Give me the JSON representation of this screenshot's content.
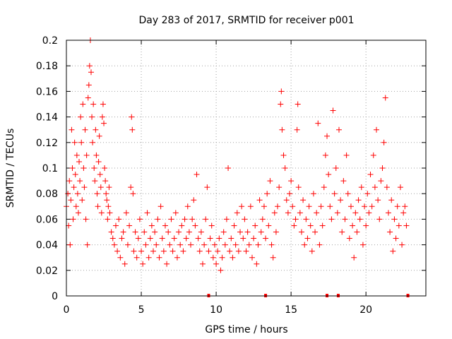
{
  "chart_data": {
    "type": "scatter",
    "title": "Day 283 of 2017, SRMTID for receiver p001",
    "xlabel": "GPS time / hours",
    "ylabel": "SRMTID / TECUs",
    "xlim": [
      0,
      24
    ],
    "ylim": [
      0,
      0.2
    ],
    "x_ticks": [
      0,
      5,
      10,
      15,
      20
    ],
    "x_tick_labels": [
      "0",
      "5",
      "10",
      "15",
      "20"
    ],
    "y_ticks": [
      0,
      0.02,
      0.04,
      0.06,
      0.08,
      0.1,
      0.12,
      0.14,
      0.16,
      0.18,
      0.2
    ],
    "y_tick_labels": [
      "0",
      "0.02",
      "0.04",
      "0.06",
      "0.08",
      "0.1",
      "0.12",
      "0.14",
      "0.16",
      "0.18",
      "0.2"
    ],
    "grid": true,
    "grid_style": "dotted",
    "marker": "+",
    "series": [
      {
        "name": "SRMTID",
        "color": "#ff0000",
        "points": [
          [
            0.0,
            0.07
          ],
          [
            0.1,
            0.08
          ],
          [
            0.15,
            0.055
          ],
          [
            0.2,
            0.09
          ],
          [
            0.25,
            0.04
          ],
          [
            0.3,
            0.075
          ],
          [
            0.35,
            0.13
          ],
          [
            0.4,
            0.1
          ],
          [
            0.45,
            0.06
          ],
          [
            0.5,
            0.085
          ],
          [
            0.55,
            0.12
          ],
          [
            0.6,
            0.095
          ],
          [
            0.65,
            0.07
          ],
          [
            0.7,
            0.11
          ],
          [
            0.75,
            0.08
          ],
          [
            0.8,
            0.065
          ],
          [
            0.85,
            0.105
          ],
          [
            0.9,
            0.09
          ],
          [
            0.95,
            0.14
          ],
          [
            1.0,
            0.12
          ],
          [
            1.05,
            0.075
          ],
          [
            1.1,
            0.15
          ],
          [
            1.15,
            0.1
          ],
          [
            1.2,
            0.085
          ],
          [
            1.25,
            0.13
          ],
          [
            1.3,
            0.06
          ],
          [
            1.35,
            0.11
          ],
          [
            1.4,
            0.04
          ],
          [
            1.45,
            0.155
          ],
          [
            1.5,
            0.165
          ],
          [
            1.55,
            0.18
          ],
          [
            1.6,
            0.2
          ],
          [
            1.65,
            0.175
          ],
          [
            1.7,
            0.14
          ],
          [
            1.75,
            0.12
          ],
          [
            1.8,
            0.15
          ],
          [
            1.85,
            0.1
          ],
          [
            1.9,
            0.09
          ],
          [
            1.95,
            0.13
          ],
          [
            2.0,
            0.11
          ],
          [
            2.05,
            0.08
          ],
          [
            2.1,
            0.07
          ],
          [
            2.15,
            0.105
          ],
          [
            2.2,
            0.125
          ],
          [
            2.25,
            0.095
          ],
          [
            2.3,
            0.085
          ],
          [
            2.35,
            0.065
          ],
          [
            2.4,
            0.14
          ],
          [
            2.45,
            0.15
          ],
          [
            2.5,
            0.135
          ],
          [
            2.55,
            0.1
          ],
          [
            2.6,
            0.09
          ],
          [
            2.65,
            0.08
          ],
          [
            2.7,
            0.075
          ],
          [
            2.75,
            0.06
          ],
          [
            2.8,
            0.07
          ],
          [
            2.85,
            0.085
          ],
          [
            2.9,
            0.065
          ],
          [
            3.0,
            0.05
          ],
          [
            3.1,
            0.045
          ],
          [
            3.2,
            0.04
          ],
          [
            3.3,
            0.055
          ],
          [
            3.4,
            0.035
          ],
          [
            3.5,
            0.06
          ],
          [
            3.6,
            0.03
          ],
          [
            3.7,
            0.045
          ],
          [
            3.8,
            0.05
          ],
          [
            3.9,
            0.025
          ],
          [
            4.0,
            0.065
          ],
          [
            4.1,
            0.04
          ],
          [
            4.2,
            0.055
          ],
          [
            4.3,
            0.085
          ],
          [
            4.35,
            0.14
          ],
          [
            4.4,
            0.13
          ],
          [
            4.45,
            0.08
          ],
          [
            4.5,
            0.035
          ],
          [
            4.6,
            0.05
          ],
          [
            4.7,
            0.03
          ],
          [
            4.8,
            0.045
          ],
          [
            4.9,
            0.06
          ],
          [
            5.0,
            0.035
          ],
          [
            5.1,
            0.025
          ],
          [
            5.2,
            0.05
          ],
          [
            5.3,
            0.04
          ],
          [
            5.4,
            0.065
          ],
          [
            5.5,
            0.03
          ],
          [
            5.6,
            0.045
          ],
          [
            5.7,
            0.055
          ],
          [
            5.8,
            0.035
          ],
          [
            5.9,
            0.05
          ],
          [
            6.0,
            0.04
          ],
          [
            6.1,
            0.06
          ],
          [
            6.2,
            0.03
          ],
          [
            6.3,
            0.07
          ],
          [
            6.4,
            0.045
          ],
          [
            6.5,
            0.035
          ],
          [
            6.6,
            0.055
          ],
          [
            6.7,
            0.025
          ],
          [
            6.8,
            0.05
          ],
          [
            6.9,
            0.04
          ],
          [
            7.0,
            0.06
          ],
          [
            7.1,
            0.035
          ],
          [
            7.2,
            0.045
          ],
          [
            7.3,
            0.065
          ],
          [
            7.4,
            0.03
          ],
          [
            7.5,
            0.05
          ],
          [
            7.6,
            0.04
          ],
          [
            7.7,
            0.055
          ],
          [
            7.8,
            0.035
          ],
          [
            7.9,
            0.06
          ],
          [
            8.0,
            0.045
          ],
          [
            8.1,
            0.07
          ],
          [
            8.2,
            0.05
          ],
          [
            8.3,
            0.04
          ],
          [
            8.4,
            0.06
          ],
          [
            8.5,
            0.075
          ],
          [
            8.6,
            0.055
          ],
          [
            8.7,
            0.095
          ],
          [
            8.8,
            0.045
          ],
          [
            8.9,
            0.035
          ],
          [
            9.0,
            0.05
          ],
          [
            9.1,
            0.025
          ],
          [
            9.2,
            0.04
          ],
          [
            9.3,
            0.06
          ],
          [
            9.4,
            0.085
          ],
          [
            9.5,
            0.035
          ],
          [
            9.6,
            0.045
          ],
          [
            9.7,
            0.055
          ],
          [
            9.8,
            0.03
          ],
          [
            9.9,
            0.04
          ],
          [
            10.0,
            0.025
          ],
          [
            10.1,
            0.035
          ],
          [
            10.2,
            0.045
          ],
          [
            10.3,
            0.02
          ],
          [
            10.4,
            0.03
          ],
          [
            10.5,
            0.05
          ],
          [
            10.6,
            0.04
          ],
          [
            10.7,
            0.06
          ],
          [
            10.8,
            0.1
          ],
          [
            10.9,
            0.035
          ],
          [
            11.0,
            0.045
          ],
          [
            11.1,
            0.03
          ],
          [
            11.2,
            0.055
          ],
          [
            11.3,
            0.04
          ],
          [
            11.4,
            0.065
          ],
          [
            11.5,
            0.035
          ],
          [
            11.6,
            0.05
          ],
          [
            11.7,
            0.07
          ],
          [
            11.8,
            0.045
          ],
          [
            11.9,
            0.06
          ],
          [
            12.0,
            0.035
          ],
          [
            12.1,
            0.05
          ],
          [
            12.2,
            0.04
          ],
          [
            12.3,
            0.07
          ],
          [
            12.4,
            0.03
          ],
          [
            12.5,
            0.045
          ],
          [
            12.6,
            0.055
          ],
          [
            12.7,
            0.025
          ],
          [
            12.8,
            0.04
          ],
          [
            12.9,
            0.075
          ],
          [
            13.0,
            0.05
          ],
          [
            13.1,
            0.06
          ],
          [
            13.2,
            0.07
          ],
          [
            13.3,
            0.045
          ],
          [
            13.4,
            0.08
          ],
          [
            13.5,
            0.055
          ],
          [
            13.6,
            0.09
          ],
          [
            13.7,
            0.04
          ],
          [
            13.8,
            0.03
          ],
          [
            13.9,
            0.065
          ],
          [
            14.0,
            0.05
          ],
          [
            14.1,
            0.07
          ],
          [
            14.2,
            0.085
          ],
          [
            14.3,
            0.15
          ],
          [
            14.35,
            0.16
          ],
          [
            14.4,
            0.13
          ],
          [
            14.5,
            0.11
          ],
          [
            14.6,
            0.1
          ],
          [
            14.7,
            0.075
          ],
          [
            14.8,
            0.065
          ],
          [
            14.9,
            0.08
          ],
          [
            15.0,
            0.09
          ],
          [
            15.1,
            0.07
          ],
          [
            15.2,
            0.055
          ],
          [
            15.3,
            0.06
          ],
          [
            15.4,
            0.13
          ],
          [
            15.45,
            0.15
          ],
          [
            15.5,
            0.085
          ],
          [
            15.6,
            0.065
          ],
          [
            15.7,
            0.05
          ],
          [
            15.8,
            0.075
          ],
          [
            15.9,
            0.04
          ],
          [
            16.0,
            0.06
          ],
          [
            16.1,
            0.045
          ],
          [
            16.2,
            0.07
          ],
          [
            16.3,
            0.055
          ],
          [
            16.4,
            0.035
          ],
          [
            16.5,
            0.08
          ],
          [
            16.6,
            0.05
          ],
          [
            16.7,
            0.065
          ],
          [
            16.8,
            0.135
          ],
          [
            16.9,
            0.04
          ],
          [
            17.0,
            0.07
          ],
          [
            17.1,
            0.055
          ],
          [
            17.2,
            0.085
          ],
          [
            17.3,
            0.11
          ],
          [
            17.4,
            0.125
          ],
          [
            17.5,
            0.095
          ],
          [
            17.6,
            0.07
          ],
          [
            17.7,
            0.06
          ],
          [
            17.8,
            0.145
          ],
          [
            17.9,
            0.08
          ],
          [
            18.0,
            0.1
          ],
          [
            18.1,
            0.065
          ],
          [
            18.2,
            0.13
          ],
          [
            18.3,
            0.075
          ],
          [
            18.4,
            0.05
          ],
          [
            18.5,
            0.09
          ],
          [
            18.6,
            0.06
          ],
          [
            18.7,
            0.11
          ],
          [
            18.8,
            0.08
          ],
          [
            18.9,
            0.045
          ],
          [
            19.0,
            0.07
          ],
          [
            19.1,
            0.055
          ],
          [
            19.2,
            0.03
          ],
          [
            19.3,
            0.065
          ],
          [
            19.4,
            0.05
          ],
          [
            19.5,
            0.075
          ],
          [
            19.6,
            0.06
          ],
          [
            19.7,
            0.085
          ],
          [
            19.8,
            0.04
          ],
          [
            19.9,
            0.07
          ],
          [
            20.0,
            0.055
          ],
          [
            20.1,
            0.08
          ],
          [
            20.2,
            0.065
          ],
          [
            20.3,
            0.095
          ],
          [
            20.4,
            0.07
          ],
          [
            20.5,
            0.11
          ],
          [
            20.6,
            0.085
          ],
          [
            20.7,
            0.13
          ],
          [
            20.8,
            0.075
          ],
          [
            20.9,
            0.06
          ],
          [
            21.0,
            0.09
          ],
          [
            21.1,
            0.1
          ],
          [
            21.2,
            0.12
          ],
          [
            21.3,
            0.155
          ],
          [
            21.4,
            0.085
          ],
          [
            21.5,
            0.065
          ],
          [
            21.6,
            0.05
          ],
          [
            21.7,
            0.075
          ],
          [
            21.8,
            0.035
          ],
          [
            21.9,
            0.06
          ],
          [
            22.0,
            0.045
          ],
          [
            22.1,
            0.07
          ],
          [
            22.2,
            0.055
          ],
          [
            22.3,
            0.085
          ],
          [
            22.4,
            0.04
          ],
          [
            22.5,
            0.065
          ],
          [
            22.6,
            0.07
          ],
          [
            22.7,
            0.055
          ]
        ]
      }
    ],
    "gap_markers_x": [
      9.5,
      13.3,
      17.4,
      18.15,
      22.8
    ]
  }
}
